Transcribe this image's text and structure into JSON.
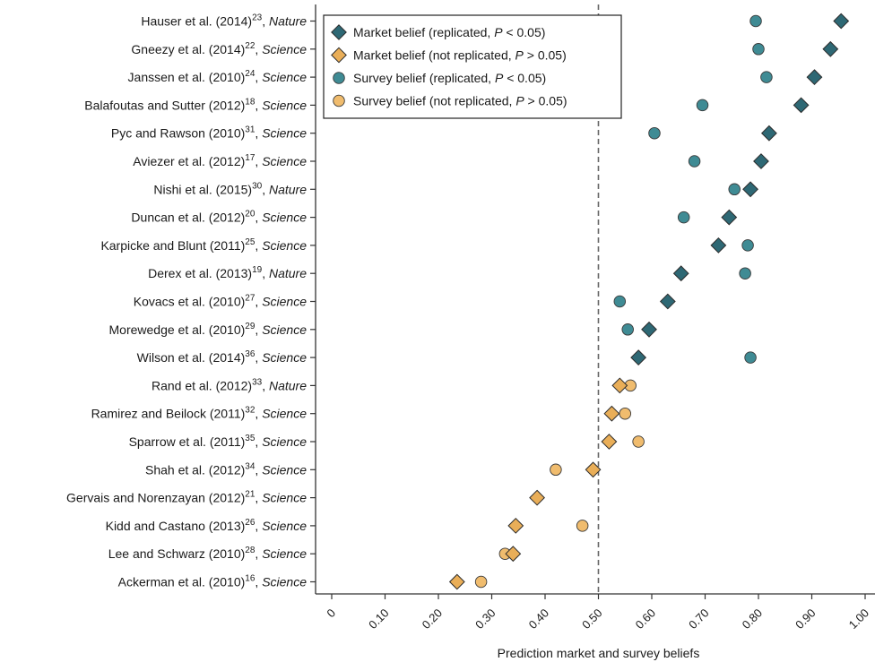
{
  "chart_data": {
    "type": "scatter",
    "xlabel": "Prediction market and survey beliefs",
    "xlim": [
      0,
      1.0
    ],
    "x_ticks": [
      "0",
      "0.10",
      "0.20",
      "0.30",
      "0.40",
      "0.50",
      "0.60",
      "0.70",
      "0.80",
      "0.90",
      "1.00"
    ],
    "reference_line": 0.5,
    "grid": false,
    "legend_position": "top-left",
    "legend": [
      {
        "key": "mr",
        "parts": [
          "Market belief (replicated, ",
          "P",
          " < 0.05)"
        ],
        "marker": "diamond",
        "color": "#2e6874"
      },
      {
        "key": "mn",
        "parts": [
          "Market belief (not replicated, ",
          "P",
          " > 0.05)"
        ],
        "marker": "diamond",
        "color": "#e9ae58"
      },
      {
        "key": "sr",
        "parts": [
          "Survey belief (replicated, ",
          "P",
          " < 0.05)"
        ],
        "marker": "circle",
        "color": "#3f8b94"
      },
      {
        "key": "sn",
        "parts": [
          "Survey belief (not replicated, ",
          "P",
          " > 0.05)"
        ],
        "marker": "circle",
        "color": "#f0bc6e"
      }
    ],
    "studies": [
      {
        "authors": "Hauser et al. (2014)",
        "ref": "23",
        "journal": "Nature",
        "market": 0.955,
        "survey": 0.795,
        "replicated": true
      },
      {
        "authors": "Gneezy et al. (2014)",
        "ref": "22",
        "journal": "Science",
        "market": 0.935,
        "survey": 0.8,
        "replicated": true
      },
      {
        "authors": "Janssen et al. (2010)",
        "ref": "24",
        "journal": "Science",
        "market": 0.905,
        "survey": 0.815,
        "replicated": true
      },
      {
        "authors": "Balafoutas and Sutter (2012)",
        "ref": "18",
        "journal": "Science",
        "market": 0.88,
        "survey": 0.695,
        "replicated": true
      },
      {
        "authors": "Pyc and Rawson (2010)",
        "ref": "31",
        "journal": "Science",
        "market": 0.82,
        "survey": 0.605,
        "replicated": true
      },
      {
        "authors": "Aviezer et al. (2012)",
        "ref": "17",
        "journal": "Science",
        "market": 0.805,
        "survey": 0.68,
        "replicated": true
      },
      {
        "authors": "Nishi et al. (2015)",
        "ref": "30",
        "journal": "Nature",
        "market": 0.785,
        "survey": 0.755,
        "replicated": true
      },
      {
        "authors": "Duncan et al. (2012)",
        "ref": "20",
        "journal": "Science",
        "market": 0.745,
        "survey": 0.66,
        "replicated": true
      },
      {
        "authors": "Karpicke and Blunt (2011)",
        "ref": "25",
        "journal": "Science",
        "market": 0.725,
        "survey": 0.78,
        "replicated": true
      },
      {
        "authors": "Derex et al. (2013)",
        "ref": "19",
        "journal": "Nature",
        "market": 0.655,
        "survey": 0.775,
        "replicated": true
      },
      {
        "authors": "Kovacs et al. (2010)",
        "ref": "27",
        "journal": "Science",
        "market": 0.63,
        "survey": 0.54,
        "replicated": true
      },
      {
        "authors": "Morewedge et al. (2010)",
        "ref": "29",
        "journal": "Science",
        "market": 0.595,
        "survey": 0.555,
        "replicated": true
      },
      {
        "authors": "Wilson et al. (2014)",
        "ref": "36",
        "journal": "Science",
        "market": 0.575,
        "survey": 0.785,
        "replicated": true
      },
      {
        "authors": "Rand et al. (2012)",
        "ref": "33",
        "journal": "Nature",
        "market": 0.54,
        "survey": 0.56,
        "replicated": false
      },
      {
        "authors": "Ramirez and Beilock (2011)",
        "ref": "32",
        "journal": "Science",
        "market": 0.525,
        "survey": 0.55,
        "replicated": false
      },
      {
        "authors": "Sparrow et al. (2011)",
        "ref": "35",
        "journal": "Science",
        "market": 0.52,
        "survey": 0.575,
        "replicated": false
      },
      {
        "authors": "Shah et al. (2012)",
        "ref": "34",
        "journal": "Science",
        "market": 0.49,
        "survey": 0.42,
        "replicated": false
      },
      {
        "authors": "Gervais and Norenzayan (2012)",
        "ref": "21",
        "journal": "Science",
        "market": 0.385,
        "survey": null,
        "replicated": false
      },
      {
        "authors": "Kidd and Castano (2013)",
        "ref": "26",
        "journal": "Science",
        "market": 0.345,
        "survey": 0.47,
        "replicated": false
      },
      {
        "authors": "Lee and Schwarz (2010)",
        "ref": "28",
        "journal": "Science",
        "market": 0.34,
        "survey": 0.325,
        "replicated": false
      },
      {
        "authors": "Ackerman et al. (2010)",
        "ref": "16",
        "journal": "Science",
        "market": 0.235,
        "survey": 0.28,
        "replicated": false
      }
    ]
  }
}
